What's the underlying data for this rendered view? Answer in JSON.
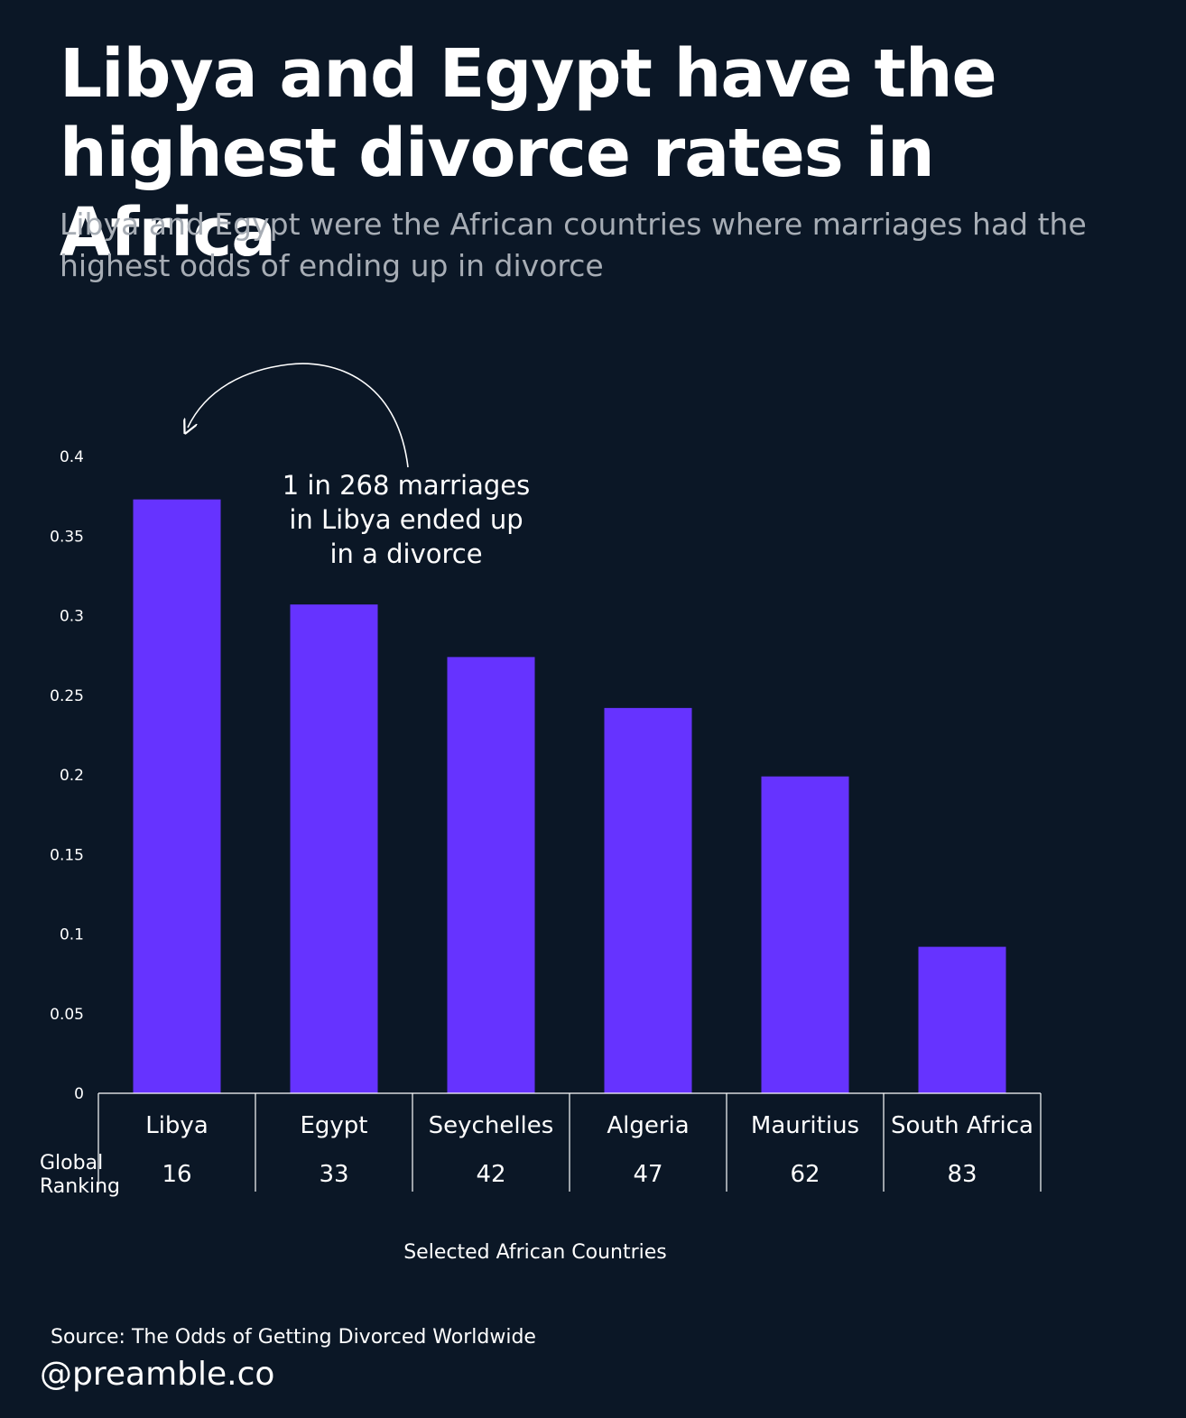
{
  "title": "Libya and Egypt have the highest divorce rates in Africa",
  "subtitle": "Libya and Egypt were the African countries where marriages had the highest odds of ending up in divorce",
  "source": "Source: The Odds of Getting Divorced Worldwide",
  "handle": "@preamble.co",
  "colors": {
    "background": "#0b1726",
    "bar": "#6633ff",
    "text": "#ffffff",
    "subtitle": "#a7adb5"
  },
  "chart_data": {
    "type": "bar",
    "categories": [
      "Libya",
      "Egypt",
      "Seychelles",
      "Algeria",
      "Mauritius",
      "South Africa"
    ],
    "values": [
      0.373,
      0.307,
      0.274,
      0.242,
      0.199,
      0.092
    ],
    "global_ranking_label": "Global Ranking",
    "global_ranking": [
      "16",
      "33",
      "42",
      "47",
      "62",
      "83"
    ],
    "xlabel": "Selected African Countries",
    "ylabel": "",
    "ylim": [
      0,
      0.4
    ],
    "yticks": [
      "0",
      "0.05",
      "0.1",
      "0.15",
      "0.2",
      "0.25",
      "0.3",
      "0.35",
      "0.4"
    ],
    "grid": false,
    "annotation": "1 in 268 marriages in Libya ended up in a divorce"
  }
}
